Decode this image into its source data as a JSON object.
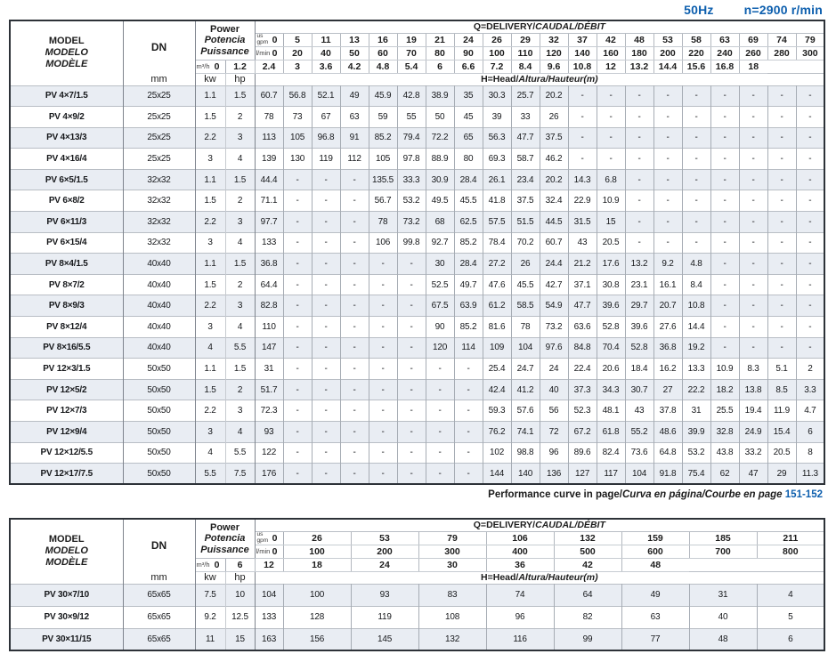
{
  "page_header": {
    "frequency": "50Hz",
    "speed": "n=2900 r/min"
  },
  "colors": {
    "accent_blue": "#0d5fae",
    "stripe_row": "#e9edf3"
  },
  "labels": {
    "model_lines": [
      "MODEL",
      "MODELO",
      "MODÈLE"
    ],
    "dn": "DN",
    "mm": "mm",
    "power_lines": [
      "Power",
      "Potencia",
      "Puissance"
    ],
    "kw": "kw",
    "hp": "hp",
    "q_plain": "Q=DELIVERY/",
    "q_italic": "CAUDAL/DÉBIT",
    "h_plain": "H=Head/",
    "h_italic": "Altura/Hauteur",
    "h_unit": "(m)",
    "unit_us": "us",
    "unit_gpm": "gpm",
    "unit_lmin": "l/min",
    "unit_m3h": "m³/h"
  },
  "caption": {
    "text_en": "Performance curve in page/",
    "text_intl": "Curva en página/Courbe en page",
    "pages": "151-152"
  },
  "table1": {
    "gpm": [
      "0",
      "5",
      "11",
      "13",
      "16",
      "19",
      "21",
      "24",
      "26",
      "29",
      "32",
      "37",
      "42",
      "48",
      "53",
      "58",
      "63",
      "69",
      "74",
      "79"
    ],
    "lmin": [
      "0",
      "20",
      "40",
      "50",
      "60",
      "70",
      "80",
      "90",
      "100",
      "110",
      "120",
      "140",
      "160",
      "180",
      "200",
      "220",
      "240",
      "260",
      "280",
      "300"
    ],
    "m3h": [
      "0",
      "1.2",
      "2.4",
      "3",
      "3.6",
      "4.2",
      "4.8",
      "5.4",
      "6",
      "6.6",
      "7.2",
      "8.4",
      "9.6",
      "10.8",
      "12",
      "13.2",
      "14.4",
      "15.6",
      "16.8",
      "18"
    ],
    "rows": [
      {
        "model": "PV 4×7/1.5",
        "dn": "25x25",
        "kw": "1.1",
        "hp": "1.5",
        "heads": [
          "60.7",
          "56.8",
          "52.1",
          "49",
          "45.9",
          "42.8",
          "38.9",
          "35",
          "30.3",
          "25.7",
          "20.2",
          "-",
          "-",
          "-",
          "-",
          "-",
          "-",
          "-",
          "-",
          "-"
        ]
      },
      {
        "model": "PV 4×9/2",
        "dn": "25x25",
        "kw": "1.5",
        "hp": "2",
        "heads": [
          "78",
          "73",
          "67",
          "63",
          "59",
          "55",
          "50",
          "45",
          "39",
          "33",
          "26",
          "-",
          "-",
          "-",
          "-",
          "-",
          "-",
          "-",
          "-",
          "-"
        ]
      },
      {
        "model": "PV 4×13/3",
        "dn": "25x25",
        "kw": "2.2",
        "hp": "3",
        "heads": [
          "113",
          "105",
          "96.8",
          "91",
          "85.2",
          "79.4",
          "72.2",
          "65",
          "56.3",
          "47.7",
          "37.5",
          "-",
          "-",
          "-",
          "-",
          "-",
          "-",
          "-",
          "-",
          "-"
        ]
      },
      {
        "model": "PV 4×16/4",
        "dn": "25x25",
        "kw": "3",
        "hp": "4",
        "heads": [
          "139",
          "130",
          "119",
          "112",
          "105",
          "97.8",
          "88.9",
          "80",
          "69.3",
          "58.7",
          "46.2",
          "-",
          "-",
          "-",
          "-",
          "-",
          "-",
          "-",
          "-",
          "-"
        ]
      },
      {
        "model": "PV 6×5/1.5",
        "dn": "32x32",
        "kw": "1.1",
        "hp": "1.5",
        "heads": [
          "44.4",
          "-",
          "-",
          "-",
          "135.5",
          "33.3",
          "30.9",
          "28.4",
          "26.1",
          "23.4",
          "20.2",
          "14.3",
          "6.8",
          "-",
          "-",
          "-",
          "-",
          "-",
          "-",
          "-"
        ]
      },
      {
        "model": "PV 6×8/2",
        "dn": "32x32",
        "kw": "1.5",
        "hp": "2",
        "heads": [
          "71.1",
          "-",
          "-",
          "-",
          "56.7",
          "53.2",
          "49.5",
          "45.5",
          "41.8",
          "37.5",
          "32.4",
          "22.9",
          "10.9",
          "-",
          "-",
          "-",
          "-",
          "-",
          "-",
          "-"
        ]
      },
      {
        "model": "PV 6×11/3",
        "dn": "32x32",
        "kw": "2.2",
        "hp": "3",
        "heads": [
          "97.7",
          "-",
          "-",
          "-",
          "78",
          "73.2",
          "68",
          "62.5",
          "57.5",
          "51.5",
          "44.5",
          "31.5",
          "15",
          "-",
          "-",
          "-",
          "-",
          "-",
          "-",
          "-"
        ]
      },
      {
        "model": "PV 6×15/4",
        "dn": "32x32",
        "kw": "3",
        "hp": "4",
        "heads": [
          "133",
          "-",
          "-",
          "-",
          "106",
          "99.8",
          "92.7",
          "85.2",
          "78.4",
          "70.2",
          "60.7",
          "43",
          "20.5",
          "-",
          "-",
          "-",
          "-",
          "-",
          "-",
          "-"
        ]
      },
      {
        "model": "PV 8×4/1.5",
        "dn": "40x40",
        "kw": "1.1",
        "hp": "1.5",
        "heads": [
          "36.8",
          "-",
          "-",
          "-",
          "-",
          "-",
          "30",
          "28.4",
          "27.2",
          "26",
          "24.4",
          "21.2",
          "17.6",
          "13.2",
          "9.2",
          "4.8",
          "-",
          "-",
          "-",
          "-"
        ]
      },
      {
        "model": "PV 8×7/2",
        "dn": "40x40",
        "kw": "1.5",
        "hp": "2",
        "heads": [
          "64.4",
          "-",
          "-",
          "-",
          "-",
          "-",
          "52.5",
          "49.7",
          "47.6",
          "45.5",
          "42.7",
          "37.1",
          "30.8",
          "23.1",
          "16.1",
          "8.4",
          "-",
          "-",
          "-",
          "-"
        ]
      },
      {
        "model": "PV 8×9/3",
        "dn": "40x40",
        "kw": "2.2",
        "hp": "3",
        "heads": [
          "82.8",
          "-",
          "-",
          "-",
          "-",
          "-",
          "67.5",
          "63.9",
          "61.2",
          "58.5",
          "54.9",
          "47.7",
          "39.6",
          "29.7",
          "20.7",
          "10.8",
          "-",
          "-",
          "-",
          "-"
        ]
      },
      {
        "model": "PV 8×12/4",
        "dn": "40x40",
        "kw": "3",
        "hp": "4",
        "heads": [
          "110",
          "-",
          "-",
          "-",
          "-",
          "-",
          "90",
          "85.2",
          "81.6",
          "78",
          "73.2",
          "63.6",
          "52.8",
          "39.6",
          "27.6",
          "14.4",
          "-",
          "-",
          "-",
          "-"
        ]
      },
      {
        "model": "PV 8×16/5.5",
        "dn": "40x40",
        "kw": "4",
        "hp": "5.5",
        "heads": [
          "147",
          "-",
          "-",
          "-",
          "-",
          "-",
          "120",
          "114",
          "109",
          "104",
          "97.6",
          "84.8",
          "70.4",
          "52.8",
          "36.8",
          "19.2",
          "-",
          "-",
          "-",
          "-"
        ]
      },
      {
        "model": "PV 12×3/1.5",
        "dn": "50x50",
        "kw": "1.1",
        "hp": "1.5",
        "heads": [
          "31",
          "-",
          "-",
          "-",
          "-",
          "-",
          "-",
          "-",
          "25.4",
          "24.7",
          "24",
          "22.4",
          "20.6",
          "18.4",
          "16.2",
          "13.3",
          "10.9",
          "8.3",
          "5.1",
          "2"
        ]
      },
      {
        "model": "PV 12×5/2",
        "dn": "50x50",
        "kw": "1.5",
        "hp": "2",
        "heads": [
          "51.7",
          "-",
          "-",
          "-",
          "-",
          "-",
          "-",
          "-",
          "42.4",
          "41.2",
          "40",
          "37.3",
          "34.3",
          "30.7",
          "27",
          "22.2",
          "18.2",
          "13.8",
          "8.5",
          "3.3"
        ]
      },
      {
        "model": "PV 12×7/3",
        "dn": "50x50",
        "kw": "2.2",
        "hp": "3",
        "heads": [
          "72.3",
          "-",
          "-",
          "-",
          "-",
          "-",
          "-",
          "-",
          "59.3",
          "57.6",
          "56",
          "52.3",
          "48.1",
          "43",
          "37.8",
          "31",
          "25.5",
          "19.4",
          "11.9",
          "4.7"
        ]
      },
      {
        "model": "PV 12×9/4",
        "dn": "50x50",
        "kw": "3",
        "hp": "4",
        "heads": [
          "93",
          "-",
          "-",
          "-",
          "-",
          "-",
          "-",
          "-",
          "76.2",
          "74.1",
          "72",
          "67.2",
          "61.8",
          "55.2",
          "48.6",
          "39.9",
          "32.8",
          "24.9",
          "15.4",
          "6"
        ]
      },
      {
        "model": "PV 12×12/5.5",
        "dn": "50x50",
        "kw": "4",
        "hp": "5.5",
        "heads": [
          "122",
          "-",
          "-",
          "-",
          "-",
          "-",
          "-",
          "-",
          "102",
          "98.8",
          "96",
          "89.6",
          "82.4",
          "73.6",
          "64.8",
          "53.2",
          "43.8",
          "33.2",
          "20.5",
          "8"
        ]
      },
      {
        "model": "PV 12×17/7.5",
        "dn": "50x50",
        "kw": "5.5",
        "hp": "7.5",
        "heads": [
          "176",
          "-",
          "-",
          "-",
          "-",
          "-",
          "-",
          "-",
          "144",
          "140",
          "136",
          "127",
          "117",
          "104",
          "91.8",
          "75.4",
          "62",
          "47",
          "29",
          "11.3"
        ]
      }
    ]
  },
  "table2": {
    "gpm": [
      "0",
      "26",
      "53",
      "79",
      "106",
      "132",
      "159",
      "185",
      "211"
    ],
    "lmin": [
      "0",
      "100",
      "200",
      "300",
      "400",
      "500",
      "600",
      "700",
      "800"
    ],
    "m3h": [
      "0",
      "6",
      "12",
      "18",
      "24",
      "30",
      "36",
      "42",
      "48"
    ],
    "rows": [
      {
        "model": "PV 30×7/10",
        "dn": "65x65",
        "kw": "7.5",
        "hp": "10",
        "heads": [
          "104",
          "100",
          "93",
          "83",
          "74",
          "64",
          "49",
          "31",
          "4"
        ]
      },
      {
        "model": "PV 30×9/12",
        "dn": "65x65",
        "kw": "9.2",
        "hp": "12.5",
        "heads": [
          "133",
          "128",
          "119",
          "108",
          "96",
          "82",
          "63",
          "40",
          "5"
        ]
      },
      {
        "model": "PV 30×11/15",
        "dn": "65x65",
        "kw": "11",
        "hp": "15",
        "heads": [
          "163",
          "156",
          "145",
          "132",
          "116",
          "99",
          "77",
          "48",
          "6"
        ]
      }
    ]
  }
}
